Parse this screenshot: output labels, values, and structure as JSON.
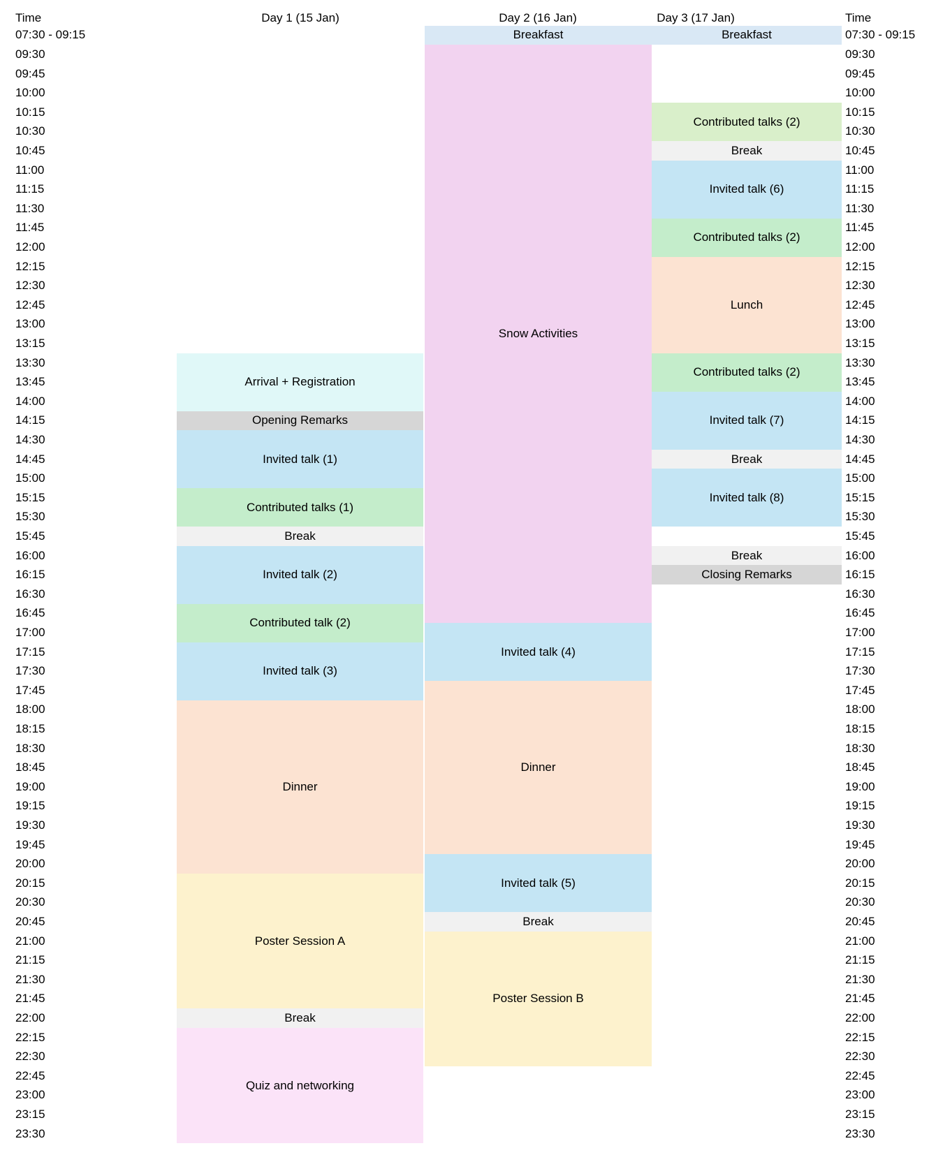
{
  "header": {
    "time_left": "Time",
    "time_right": "Time"
  },
  "palette": {
    "breakfast_blue": "#d9e8f5",
    "invited_blue": "#c4e5f4",
    "snow_plum": "#f2d3f0",
    "contributed_green": "#c4edcb",
    "contributed_green_light": "#d9efca",
    "meal_peach": "#fce3d2",
    "poster_yellow": "#fdf2cd",
    "break_gray": "#f1f1f1",
    "remarks_gray": "#d6d6d6",
    "arrival_cyan": "#e0f8f8",
    "quiz_pink": "#fbe3f8"
  },
  "time_rows": [
    "07:30 - 09:15",
    "09:30",
    "09:45",
    "10:00",
    "10:15",
    "10:30",
    "10:45",
    "11:00",
    "11:15",
    "11:30",
    "11:45",
    "12:00",
    "12:15",
    "12:30",
    "12:45",
    "13:00",
    "13:15",
    "13:30",
    "13:45",
    "14:00",
    "14:15",
    "14:30",
    "14:45",
    "15:00",
    "15:15",
    "15:30",
    "15:45",
    "16:00",
    "16:15",
    "16:30",
    "16:45",
    "17:00",
    "17:15",
    "17:30",
    "17:45",
    "18:00",
    "18:15",
    "18:30",
    "18:45",
    "19:00",
    "19:15",
    "19:30",
    "19:45",
    "20:00",
    "20:15",
    "20:30",
    "20:45",
    "21:00",
    "21:15",
    "21:30",
    "21:45",
    "22:00",
    "22:15",
    "22:30",
    "22:45",
    "23:00",
    "23:15",
    "23:30"
  ],
  "schedule": [
    {
      "id": "day1",
      "header": "Day 1 (15 Jan)",
      "events": [
        {
          "label": "Arrival + Registration",
          "start": "13:30",
          "end": "14:15",
          "color": "arrival_cyan"
        },
        {
          "label": "Opening Remarks",
          "start": "14:15",
          "end": "14:30",
          "color": "remarks_gray"
        },
        {
          "label": "Invited talk (1)",
          "start": "14:30",
          "end": "15:15",
          "color": "invited_blue"
        },
        {
          "label": "Contributed talks (1)",
          "start": "15:15",
          "end": "15:45",
          "color": "contributed_green"
        },
        {
          "label": "Break",
          "start": "15:45",
          "end": "16:00",
          "color": "break_gray"
        },
        {
          "label": "Invited talk (2)",
          "start": "16:00",
          "end": "16:45",
          "color": "invited_blue"
        },
        {
          "label": "Contributed talk (2)",
          "start": "16:45",
          "end": "17:15",
          "color": "contributed_green"
        },
        {
          "label": "Invited talk (3)",
          "start": "17:15",
          "end": "18:00",
          "color": "invited_blue"
        },
        {
          "label": "Dinner",
          "start": "18:00",
          "end": "20:15",
          "color": "meal_peach"
        },
        {
          "label": "Poster Session A",
          "start": "20:15",
          "end": "22:00",
          "color": "poster_yellow"
        },
        {
          "label": "Break",
          "start": "22:00",
          "end": "22:15",
          "color": "break_gray"
        },
        {
          "label": "Quiz and networking",
          "start": "22:15",
          "end": "23:45",
          "color": "quiz_pink"
        }
      ]
    },
    {
      "id": "day2",
      "header": "Day 2 (16 Jan)",
      "events": [
        {
          "label": "Breakfast",
          "start": "07:30",
          "end": "09:15",
          "color": "breakfast_blue"
        },
        {
          "label": "Snow Activities",
          "start": "09:30",
          "end": "17:00",
          "color": "snow_plum"
        },
        {
          "label": "Invited talk (4)",
          "start": "17:00",
          "end": "17:45",
          "color": "invited_blue"
        },
        {
          "label": "Dinner",
          "start": "17:45",
          "end": "20:00",
          "color": "meal_peach"
        },
        {
          "label": "Invited talk (5)",
          "start": "20:00",
          "end": "20:45",
          "color": "invited_blue"
        },
        {
          "label": "Break",
          "start": "20:45",
          "end": "21:00",
          "color": "break_gray"
        },
        {
          "label": "Poster Session B",
          "start": "21:00",
          "end": "22:45",
          "color": "poster_yellow"
        }
      ]
    },
    {
      "id": "day3",
      "header": "Day 3 (17 Jan)",
      "events": [
        {
          "label": "Breakfast",
          "start": "07:30",
          "end": "09:15",
          "color": "breakfast_blue"
        },
        {
          "label": "Contributed talks (2)",
          "start": "10:15",
          "end": "10:45",
          "color": "contributed_green_light"
        },
        {
          "label": "Break",
          "start": "10:45",
          "end": "11:00",
          "color": "break_gray"
        },
        {
          "label": "Invited talk (6)",
          "start": "11:00",
          "end": "11:45",
          "color": "invited_blue"
        },
        {
          "label": "Contributed talks (2)",
          "start": "11:45",
          "end": "12:15",
          "color": "contributed_green"
        },
        {
          "label": "Lunch",
          "start": "12:15",
          "end": "13:30",
          "color": "meal_peach"
        },
        {
          "label": "Contributed talks (2)",
          "start": "13:30",
          "end": "14:00",
          "color": "contributed_green"
        },
        {
          "label": "Invited talk (7)",
          "start": "14:00",
          "end": "14:45",
          "color": "invited_blue"
        },
        {
          "label": "Break",
          "start": "14:45",
          "end": "15:00",
          "color": "break_gray"
        },
        {
          "label": "Invited talk (8)",
          "start": "15:00",
          "end": "15:45",
          "color": "invited_blue"
        },
        {
          "label": "Break",
          "start": "16:00",
          "end": "16:15",
          "color": "break_gray"
        },
        {
          "label": "Closing Remarks",
          "start": "16:15",
          "end": "16:30",
          "color": "remarks_gray"
        }
      ]
    }
  ]
}
